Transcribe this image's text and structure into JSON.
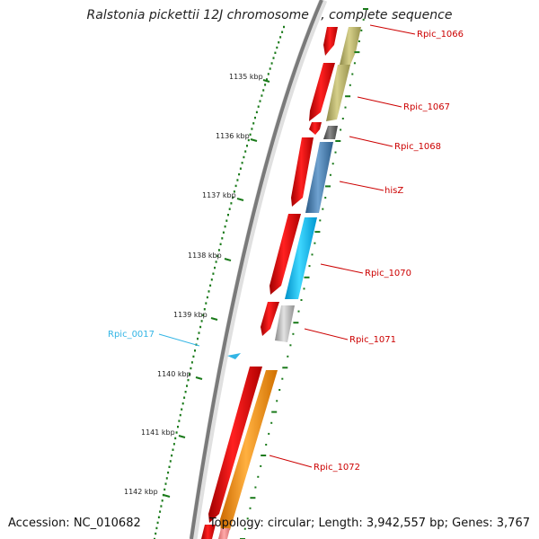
{
  "title": "Ralstonia pickettii 12J chromosome 1, complete sequence",
  "footer": {
    "accession": "Accession: NC_010682",
    "summary": "Topology: circular; Length: 3,942,557 bp; Genes: 3,767"
  },
  "scale": {
    "unit": "kbp",
    "ticks": [
      "1135 kbp",
      "1136 kbp",
      "1137 kbp",
      "1138 kbp",
      "1139 kbp",
      "1140 kbp",
      "1141 kbp",
      "1142 kbp"
    ]
  },
  "genes": [
    {
      "label": "Rpic_1066",
      "color": "#bdb76b"
    },
    {
      "label": "Rpic_1067",
      "color": "#bdb76b"
    },
    {
      "label": "Rpic_1068",
      "color": "#666666"
    },
    {
      "label": "hisZ",
      "color": "#4682b4"
    },
    {
      "label": "Rpic_1070",
      "color": "#00bfff"
    },
    {
      "label": "Rpic_1071",
      "color": "#b0b0b0"
    },
    {
      "label": "Rpic_0017",
      "color": "#33b5e5"
    },
    {
      "label": "Rpic_1072",
      "color": "#ff8c00"
    }
  ],
  "colors": {
    "cds": "#ff0000",
    "backbone": "#808080",
    "tick": "#1a7a1a",
    "label": "#cc0000",
    "rna": "#33b5e5"
  }
}
